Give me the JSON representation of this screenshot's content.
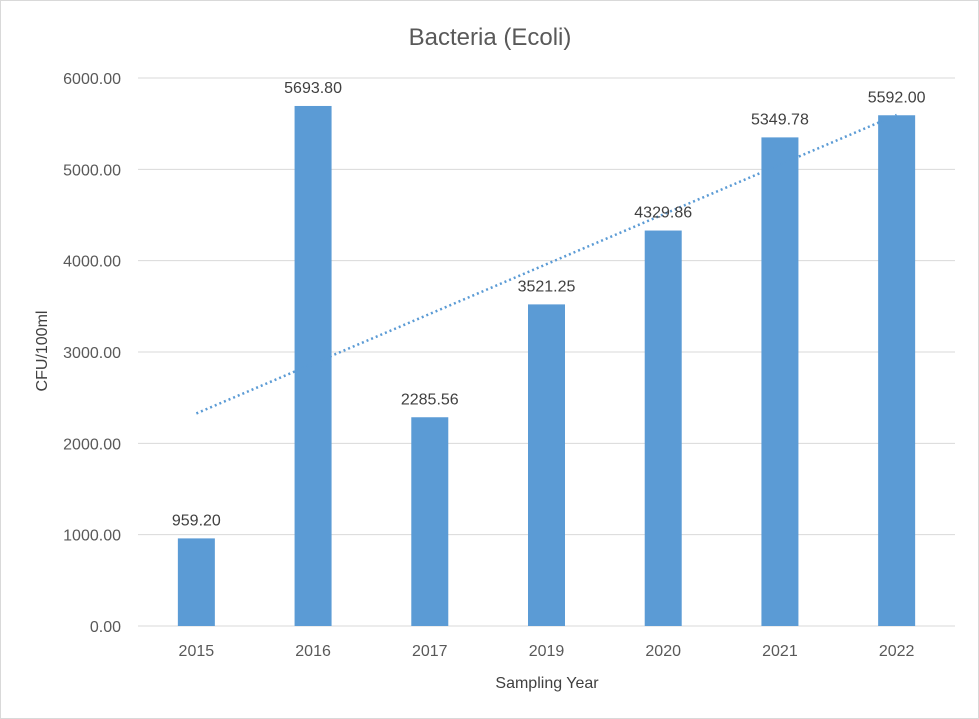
{
  "chart_data": {
    "type": "bar",
    "title": "Bacteria (Ecoli)",
    "xlabel": "Sampling Year",
    "ylabel": "CFU/100ml",
    "categories": [
      "2015",
      "2016",
      "2017",
      "2019",
      "2020",
      "2021",
      "2022"
    ],
    "values": [
      959.2,
      5693.8,
      2285.56,
      3521.25,
      4329.86,
      5349.78,
      5592.0
    ],
    "data_labels": [
      "959.20",
      "5693.80",
      "2285.56",
      "3521.25",
      "4329.86",
      "5349.78",
      "5592.00"
    ],
    "yticks": [
      "0.00",
      "1000.00",
      "2000.00",
      "3000.00",
      "4000.00",
      "5000.00",
      "6000.00"
    ],
    "ylim": [
      0,
      6000
    ],
    "grid": true,
    "trendline": {
      "type": "linear",
      "style": "dotted"
    },
    "colors": {
      "bar": "#5b9bd5",
      "trendline": "#5b9bd5",
      "grid": "#d9d9d9"
    }
  }
}
